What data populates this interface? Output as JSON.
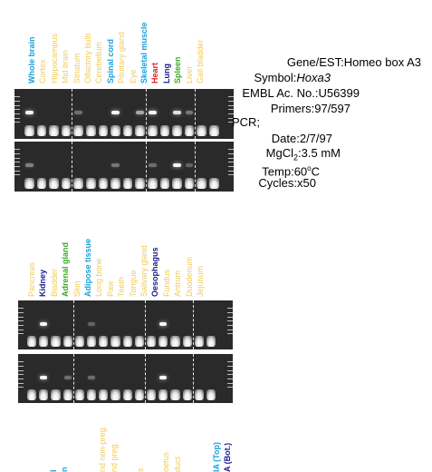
{
  "panel1": {
    "lanes": [
      {
        "label": "Whole brain",
        "color": "#1aa0d8"
      },
      {
        "label": "Cortex",
        "color": "#f0cc5a"
      },
      {
        "label": "Hippocampus",
        "color": "#f0cc5a"
      },
      {
        "label": "Mid brain",
        "color": "#f0cc5a"
      },
      {
        "label": "Striatum",
        "color": "#f0cc5a"
      },
      {
        "label": "Olfactory bulb",
        "color": "#f0cc5a"
      },
      {
        "label": "Cerebellum",
        "color": "#f0cc5a"
      },
      {
        "label": "Spinal cord",
        "color": "#1aa0d8"
      },
      {
        "label": "Pituitary gland",
        "color": "#f0cc5a"
      },
      {
        "label": "Eye",
        "color": "#f0cc5a"
      },
      {
        "label": "Skeletal muscle",
        "color": "#1aa0d8"
      },
      {
        "label": "Heart",
        "color": "#e02020"
      },
      {
        "label": "Lung",
        "color": "#1a1a8c"
      },
      {
        "label": "Spleen",
        "color": "#3aa82a"
      },
      {
        "label": "Liver",
        "color": "#f0cc5a"
      },
      {
        "label": "Gall bladder",
        "color": "#f0cc5a"
      }
    ],
    "top_bands": [
      0.95,
      0,
      0,
      0,
      0.25,
      0,
      0,
      0.95,
      0,
      0.55,
      0.95,
      0,
      0.85,
      0.3,
      0,
      0
    ],
    "bottom_bands": [
      0.35,
      0,
      0,
      0,
      0,
      0,
      0,
      0.3,
      0,
      0,
      0.25,
      0,
      0.95,
      0.2,
      0,
      0
    ]
  },
  "panel2": {
    "lanes": [
      {
        "label": "Pancreas",
        "color": "#f0cc5a"
      },
      {
        "label": "Kidney",
        "color": "#1a1a8c"
      },
      {
        "label": "Bladder",
        "color": "#f0cc5a"
      },
      {
        "label": "Adrenal gland",
        "color": "#3aa82a"
      },
      {
        "label": "Skin",
        "color": "#f0cc5a"
      },
      {
        "label": "Adipose tissue",
        "color": "#1aa0d8"
      },
      {
        "label": "Long bone",
        "color": "#f0cc5a"
      },
      {
        "label": "Paw",
        "color": "#f0cc5a"
      },
      {
        "label": "Teeth",
        "color": "#f0cc5a"
      },
      {
        "label": "Tongue",
        "color": "#f0cc5a"
      },
      {
        "label": "Salivary gland",
        "color": "#f0cc5a"
      },
      {
        "label": "Oesophagus",
        "color": "#1a1a8c"
      },
      {
        "label": "Fundus",
        "color": "#f0cc5a"
      },
      {
        "label": "Antrum",
        "color": "#f0cc5a"
      },
      {
        "label": "Duodenum",
        "color": "#f0cc5a"
      },
      {
        "label": "Jejunum",
        "color": "#f0cc5a"
      }
    ],
    "top_bands": [
      0,
      0.95,
      0,
      0,
      0,
      0.2,
      0,
      0,
      0,
      0,
      0,
      0.95,
      0,
      0,
      0,
      0
    ],
    "bottom_bands": [
      0,
      0.95,
      0,
      0.25,
      0,
      0.25,
      0,
      0,
      0,
      0,
      0,
      0.95,
      0,
      0,
      0,
      0
    ]
  },
  "panel3_partial_labels": [
    {
      "label": "l",
      "color": "#1aa0d8"
    },
    {
      "label": "n",
      "color": "#1aa0d8"
    },
    {
      "label": "nd non-preg.",
      "color": "#f0cc5a"
    },
    {
      "label": "nd preg.",
      "color": "#f0cc5a"
    },
    {
      "label": "s",
      "color": "#f0cc5a"
    },
    {
      "label": "oetus",
      "color": "#f0cc5a"
    },
    {
      "label": "duct",
      "color": "#f0cc5a"
    },
    {
      "label": "IA (Top)",
      "color": "#1aa0d8"
    },
    {
      "label": "A (Bot.)",
      "color": "#1a1a8c"
    }
  ],
  "info": {
    "gene_key": "Gene/EST:",
    "gene_val": "Homeo box A3",
    "symbol_key": "Symbol:",
    "symbol_val": "Hoxa3",
    "embl_key": "EMBL Ac. No.:",
    "embl_val": "U56399",
    "primers_key": "Primers:",
    "primers_val": "97/597",
    "pcr_key": "PCR;",
    "date_key": "Date:",
    "date_val": "2/7/97",
    "mg_key": "MgCl",
    "mg_sub": "2",
    "mg_colon": ":",
    "mg_val": "3.5 mM",
    "temp_key": "Temp:",
    "temp_val_num": "60",
    "temp_val_sup": "o",
    "temp_val_unit": "C",
    "cycles_key": "Cycles:",
    "cycles_val": "x50"
  }
}
